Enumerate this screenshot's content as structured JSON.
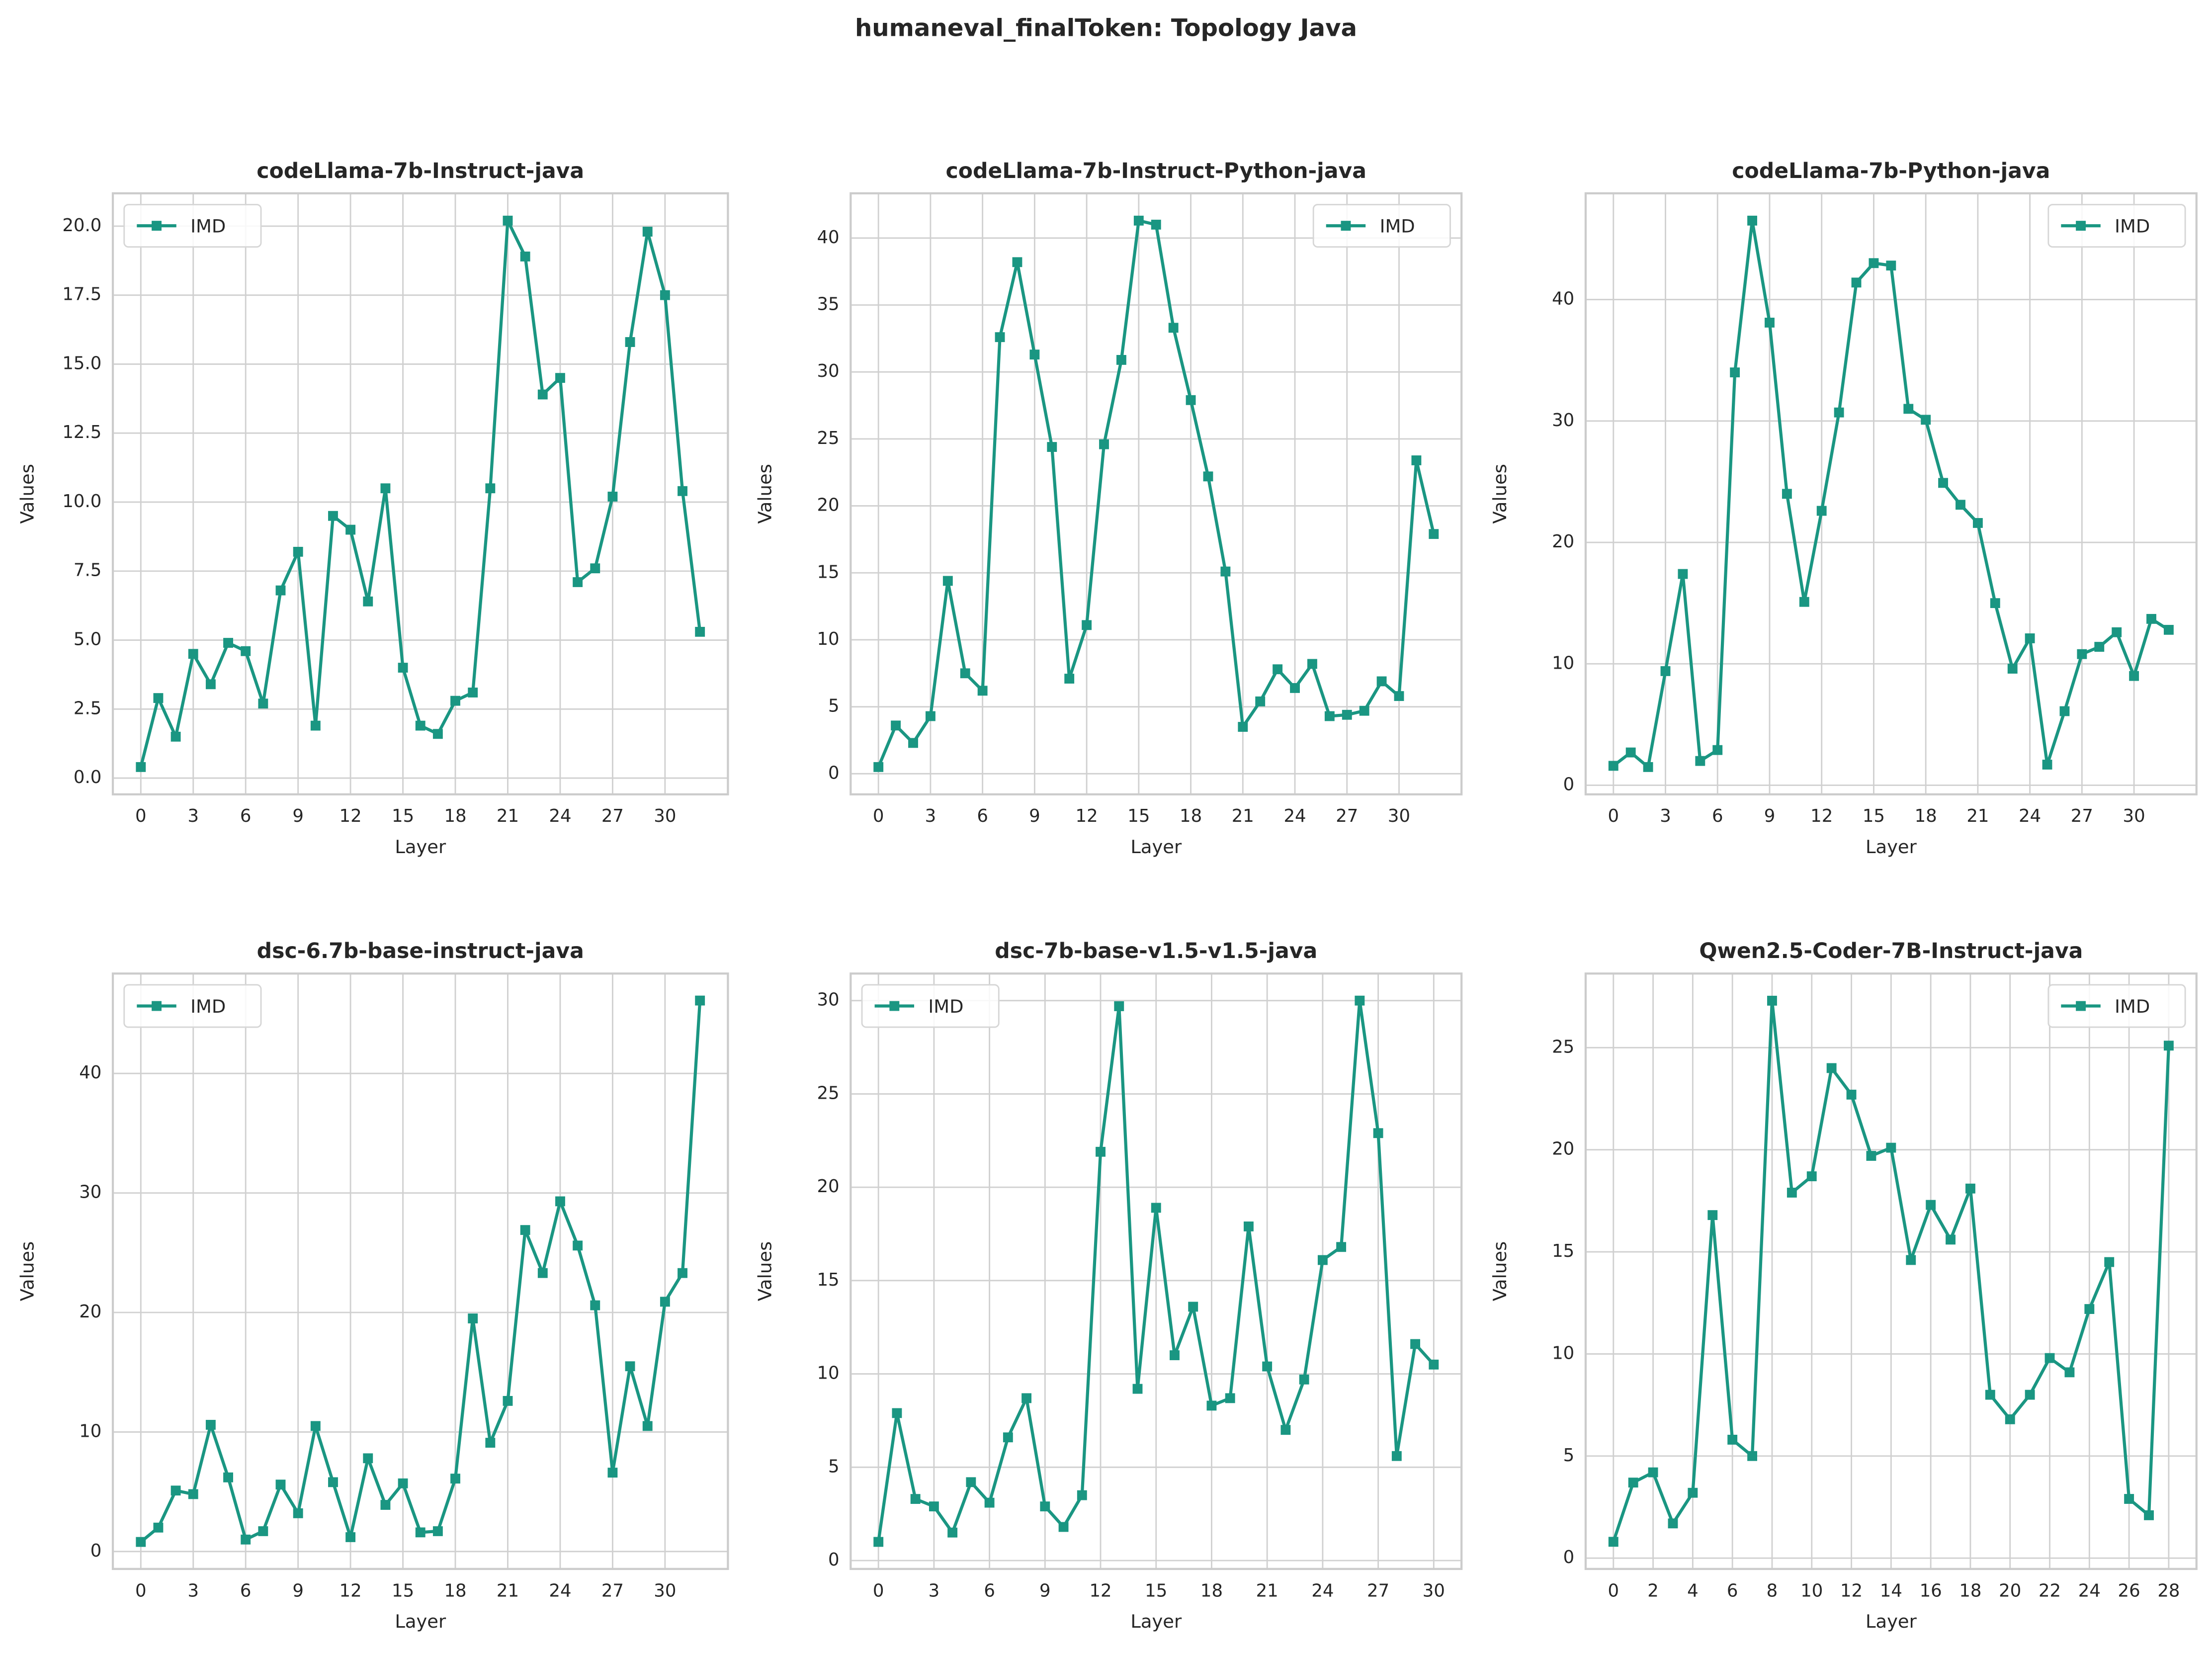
{
  "title": "humaneval_finalToken: Topology Java",
  "chart_data": [
    {
      "type": "line",
      "title": "codeLlama-7b-Instruct-java",
      "xlabel": "Layer",
      "ylabel": "Values",
      "x": [
        0,
        1,
        2,
        3,
        4,
        5,
        6,
        7,
        8,
        9,
        10,
        11,
        12,
        13,
        14,
        15,
        16,
        17,
        18,
        19,
        20,
        21,
        22,
        23,
        24,
        25,
        26,
        27,
        28,
        29,
        30,
        31,
        32
      ],
      "series": [
        {
          "name": "IMD",
          "color": "#1a9682",
          "values": [
            0.4,
            2.9,
            1.5,
            4.5,
            3.4,
            4.9,
            4.6,
            2.7,
            6.8,
            8.2,
            1.9,
            9.5,
            9.0,
            6.4,
            10.5,
            4.0,
            1.9,
            1.6,
            2.8,
            3.1,
            10.5,
            20.2,
            18.9,
            13.9,
            14.5,
            7.1,
            7.6,
            10.2,
            15.8,
            19.8,
            17.5,
            10.4,
            5.3
          ]
        }
      ],
      "xlim": [
        -1.6,
        33.6
      ],
      "ylim": [
        -0.59,
        21.19
      ],
      "xticks": [
        0,
        3,
        6,
        9,
        12,
        15,
        18,
        21,
        24,
        27,
        30
      ],
      "yticks": [
        {
          "value": 0,
          "label": "0.0"
        },
        {
          "value": 2.5,
          "label": "2.5"
        },
        {
          "value": 5,
          "label": "5.0"
        },
        {
          "value": 7.5,
          "label": "7.5"
        },
        {
          "value": 10,
          "label": "10.0"
        },
        {
          "value": 12.5,
          "label": "12.5"
        },
        {
          "value": 15,
          "label": "15.0"
        },
        {
          "value": 17.5,
          "label": "17.5"
        },
        {
          "value": 20,
          "label": "20.0"
        }
      ],
      "legend": "upper left",
      "grid": true
    },
    {
      "type": "line",
      "title": "codeLlama-7b-Instruct-Python-java",
      "xlabel": "Layer",
      "ylabel": "Values",
      "x": [
        0,
        1,
        2,
        3,
        4,
        5,
        6,
        7,
        8,
        9,
        10,
        11,
        12,
        13,
        14,
        15,
        16,
        17,
        18,
        19,
        20,
        21,
        22,
        23,
        24,
        25,
        26,
        27,
        28,
        29,
        30,
        31,
        32
      ],
      "series": [
        {
          "name": "IMD",
          "color": "#1a9682",
          "values": [
            0.5,
            3.6,
            2.3,
            4.3,
            14.4,
            7.5,
            6.2,
            32.6,
            38.2,
            31.3,
            24.4,
            7.1,
            11.1,
            24.6,
            30.9,
            41.3,
            41.0,
            33.3,
            27.9,
            22.2,
            15.1,
            3.5,
            5.4,
            7.8,
            6.4,
            8.2,
            4.3,
            4.4,
            4.7,
            6.9,
            5.8,
            23.4,
            17.9
          ]
        }
      ],
      "xlim": [
        -1.6,
        33.6
      ],
      "ylim": [
        -1.54,
        43.34
      ],
      "xticks": [
        0,
        3,
        6,
        9,
        12,
        15,
        18,
        21,
        24,
        27,
        30
      ],
      "yticks": [
        0,
        5,
        10,
        15,
        20,
        25,
        30,
        35,
        40
      ],
      "legend": "upper right",
      "grid": true
    },
    {
      "type": "line",
      "title": "codeLlama-7b-Python-java",
      "xlabel": "Layer",
      "ylabel": "Values",
      "x": [
        0,
        1,
        2,
        3,
        4,
        5,
        6,
        7,
        8,
        9,
        10,
        11,
        12,
        13,
        14,
        15,
        16,
        17,
        18,
        19,
        20,
        21,
        22,
        23,
        24,
        25,
        26,
        27,
        28,
        29,
        30,
        31,
        32
      ],
      "series": [
        {
          "name": "IMD",
          "color": "#1a9682",
          "values": [
            1.6,
            2.7,
            1.5,
            9.4,
            17.4,
            2.0,
            2.9,
            34.0,
            46.5,
            38.1,
            24.0,
            15.1,
            22.6,
            30.7,
            41.4,
            43.0,
            42.8,
            31.0,
            30.1,
            24.9,
            23.1,
            21.6,
            15.0,
            9.6,
            12.1,
            1.7,
            6.1,
            10.8,
            11.4,
            12.6,
            9.0,
            13.7,
            12.8
          ]
        }
      ],
      "xlim": [
        -1.6,
        33.6
      ],
      "ylim": [
        -0.75,
        48.75
      ],
      "xticks": [
        0,
        3,
        6,
        9,
        12,
        15,
        18,
        21,
        24,
        27,
        30
      ],
      "yticks": [
        0,
        10,
        20,
        30,
        40
      ],
      "legend": "upper right",
      "grid": true
    },
    {
      "type": "line",
      "title": "dsc-6.7b-base-instruct-java",
      "xlabel": "Layer",
      "ylabel": "Values",
      "x": [
        0,
        1,
        2,
        3,
        4,
        5,
        6,
        7,
        8,
        9,
        10,
        11,
        12,
        13,
        14,
        15,
        16,
        17,
        18,
        19,
        20,
        21,
        22,
        23,
        24,
        25,
        26,
        27,
        28,
        29,
        30,
        31,
        32
      ],
      "series": [
        {
          "name": "IMD",
          "color": "#1a9682",
          "values": [
            0.8,
            2.0,
            5.1,
            4.8,
            10.6,
            6.2,
            1.0,
            1.7,
            5.6,
            3.2,
            10.5,
            5.8,
            1.2,
            7.8,
            3.9,
            5.7,
            1.6,
            1.7,
            6.1,
            19.5,
            9.1,
            12.6,
            26.9,
            23.3,
            29.3,
            25.6,
            20.6,
            6.6,
            15.5,
            10.5,
            20.9,
            23.3,
            46.1
          ]
        }
      ],
      "xlim": [
        -1.6,
        33.6
      ],
      "ylim": [
        -1.46,
        48.36
      ],
      "xticks": [
        0,
        3,
        6,
        9,
        12,
        15,
        18,
        21,
        24,
        27,
        30
      ],
      "yticks": [
        0,
        10,
        20,
        30,
        40
      ],
      "legend": "upper left",
      "grid": true
    },
    {
      "type": "line",
      "title": "dsc-7b-base-v1.5-v1.5-java",
      "xlabel": "Layer",
      "ylabel": "Values",
      "x": [
        0,
        1,
        2,
        3,
        4,
        5,
        6,
        7,
        8,
        9,
        10,
        11,
        12,
        13,
        14,
        15,
        16,
        17,
        18,
        19,
        20,
        21,
        22,
        23,
        24,
        25,
        26,
        27,
        28,
        29,
        30
      ],
      "series": [
        {
          "name": "IMD",
          "color": "#1a9682",
          "values": [
            1.0,
            7.9,
            3.3,
            2.9,
            1.5,
            4.2,
            3.1,
            6.6,
            8.7,
            2.9,
            1.8,
            3.5,
            21.9,
            29.7,
            9.2,
            18.9,
            11.0,
            13.6,
            8.3,
            8.7,
            17.9,
            10.4,
            7.0,
            9.7,
            16.1,
            16.8,
            30.0,
            22.9,
            5.6,
            11.6,
            10.5
          ]
        }
      ],
      "xlim": [
        -1.5,
        31.5
      ],
      "ylim": [
        -0.45,
        31.45
      ],
      "xticks": [
        0,
        3,
        6,
        9,
        12,
        15,
        18,
        21,
        24,
        27,
        30
      ],
      "yticks": [
        0,
        5,
        10,
        15,
        20,
        25,
        30
      ],
      "legend": "upper left",
      "grid": true
    },
    {
      "type": "line",
      "title": "Qwen2.5-Coder-7B-Instruct-java",
      "xlabel": "Layer",
      "ylabel": "Values",
      "x": [
        0,
        1,
        2,
        3,
        4,
        5,
        6,
        7,
        8,
        9,
        10,
        11,
        12,
        13,
        14,
        15,
        16,
        17,
        18,
        19,
        20,
        21,
        22,
        23,
        24,
        25,
        26,
        27,
        28
      ],
      "series": [
        {
          "name": "IMD",
          "color": "#1a9682",
          "values": [
            0.8,
            3.7,
            4.2,
            1.7,
            3.2,
            16.8,
            5.8,
            5.0,
            27.3,
            17.9,
            18.7,
            24.0,
            22.7,
            19.7,
            20.1,
            14.6,
            17.3,
            15.6,
            18.1,
            8.0,
            6.8,
            8.0,
            9.8,
            9.1,
            12.2,
            14.5,
            2.9,
            2.1,
            25.1
          ]
        }
      ],
      "xlim": [
        -1.4,
        29.4
      ],
      "ylim": [
        -0.53,
        28.63
      ],
      "xticks": [
        0,
        2,
        4,
        6,
        8,
        10,
        12,
        14,
        16,
        18,
        20,
        22,
        24,
        26,
        28
      ],
      "yticks": [
        0,
        5,
        10,
        15,
        20,
        25
      ],
      "legend": "upper right",
      "grid": true
    }
  ]
}
